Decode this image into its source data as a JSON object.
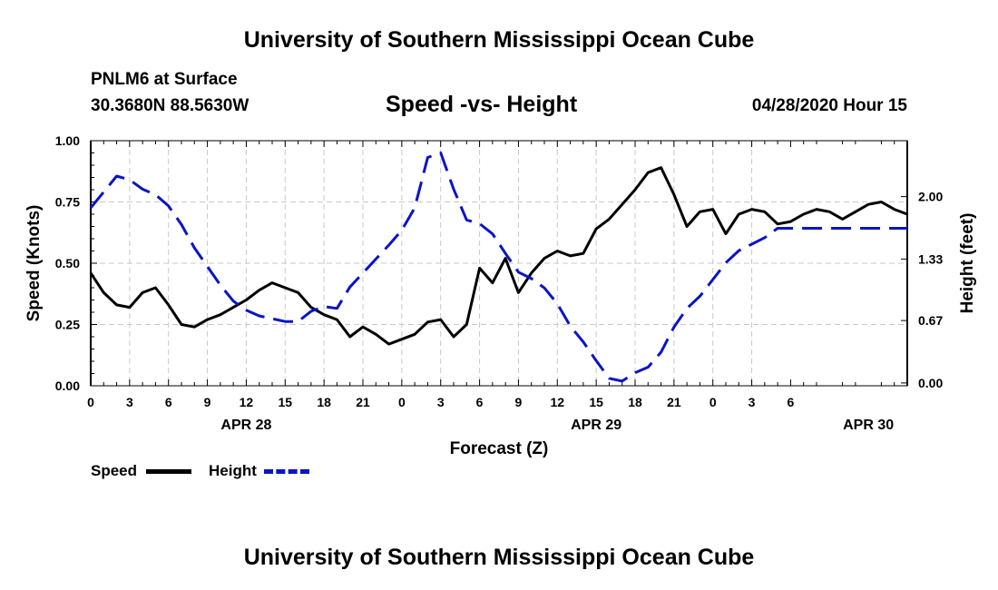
{
  "header": {
    "title": "University of Southern Mississippi Ocean Cube",
    "footer_title": "University of Southern Mississippi Ocean Cube",
    "station": "PNLM6 at Surface",
    "location": "30.3680N 88.5630W",
    "plot_title": "Speed -vs- Height",
    "timestamp": "04/28/2020 Hour 15"
  },
  "legend": {
    "speed_label": "Speed",
    "height_label": "Height"
  },
  "colors": {
    "speed": "#000000",
    "height": "#0a14c8",
    "grid": "#c8c8c8"
  },
  "chart_data": {
    "type": "line",
    "title": "Speed -vs- Height",
    "xlabel": "Forecast (Z)",
    "ylabel_left": "Speed (Knots)",
    "ylabel_right": "Height (feet)",
    "xlim": [
      0,
      63
    ],
    "ylim_left": [
      0,
      1.0
    ],
    "ylim_right": [
      -0.03,
      2.6
    ],
    "x_tick_labels": [
      "0",
      "3",
      "6",
      "9",
      "12",
      "15",
      "18",
      "21",
      "0",
      "3",
      "6",
      "9",
      "12",
      "15",
      "18",
      "21",
      "0",
      "3",
      "6"
    ],
    "left_ticks": [
      0.0,
      0.25,
      0.5,
      0.75,
      1.0
    ],
    "left_tick_labels": [
      "0.00",
      "0.25",
      "0.50",
      "0.75",
      "1.00"
    ],
    "right_ticks": [
      0.0,
      0.67,
      1.33,
      2.0
    ],
    "right_tick_labels": [
      "0.00",
      "0.67",
      "1.33",
      "2.00"
    ],
    "date_labels": [
      {
        "label": "APR 28",
        "hour": 12
      },
      {
        "label": "APR 29",
        "hour": 39
      },
      {
        "label": "APR 30",
        "hour": 60
      }
    ],
    "grid": true,
    "series": [
      {
        "name": "Speed",
        "axis": "left",
        "style": "solid",
        "x": [
          0,
          1,
          2,
          3,
          4,
          5,
          6,
          7,
          8,
          9,
          10,
          11,
          12,
          13,
          14,
          15,
          16,
          17,
          18,
          19,
          20,
          21,
          22,
          23,
          24,
          25,
          26,
          27,
          28,
          29,
          30,
          31,
          32,
          33,
          34,
          35,
          36,
          37,
          38,
          39,
          40,
          41,
          42,
          43,
          44,
          45,
          46,
          47,
          48,
          49,
          50,
          51,
          52,
          53,
          54,
          55,
          56,
          57,
          58,
          59,
          60,
          61,
          62,
          63
        ],
        "values": [
          0.46,
          0.38,
          0.33,
          0.32,
          0.38,
          0.4,
          0.33,
          0.25,
          0.24,
          0.27,
          0.29,
          0.32,
          0.35,
          0.39,
          0.42,
          0.4,
          0.38,
          0.32,
          0.29,
          0.27,
          0.2,
          0.24,
          0.21,
          0.17,
          0.19,
          0.21,
          0.26,
          0.27,
          0.2,
          0.25,
          0.48,
          0.42,
          0.52,
          0.38,
          0.46,
          0.52,
          0.55,
          0.53,
          0.54,
          0.64,
          0.68,
          0.74,
          0.8,
          0.87,
          0.89,
          0.78,
          0.65,
          0.71,
          0.72,
          0.62,
          0.7,
          0.72,
          0.71,
          0.66,
          0.67,
          0.7,
          0.72,
          0.71,
          0.68,
          0.71,
          0.74,
          0.75,
          0.72,
          0.7
        ]
      },
      {
        "name": "Height",
        "axis": "right",
        "style": "dashed",
        "x": [
          0,
          1,
          2,
          3,
          4,
          5,
          6,
          7,
          8,
          9,
          10,
          11,
          12,
          13,
          14,
          15,
          16,
          17,
          18,
          19,
          20,
          21,
          22,
          23,
          24,
          25,
          26,
          27,
          28,
          29,
          30,
          31,
          32,
          33,
          34,
          35,
          36,
          37,
          38,
          39,
          40,
          41,
          42,
          43,
          44,
          45,
          46,
          47,
          48,
          49,
          50,
          51,
          52,
          53,
          54,
          55,
          56,
          57,
          58,
          59,
          60,
          61,
          62,
          63
        ],
        "values": [
          1.88,
          2.05,
          2.22,
          2.18,
          2.08,
          2.02,
          1.9,
          1.7,
          1.45,
          1.25,
          1.05,
          0.88,
          0.78,
          0.72,
          0.69,
          0.66,
          0.66,
          0.77,
          0.82,
          0.8,
          1.03,
          1.18,
          1.33,
          1.48,
          1.64,
          1.88,
          2.42,
          2.47,
          2.08,
          1.75,
          1.71,
          1.6,
          1.39,
          1.19,
          1.12,
          1.02,
          0.85,
          0.61,
          0.44,
          0.24,
          0.05,
          0.02,
          0.11,
          0.17,
          0.33,
          0.6,
          0.8,
          0.93,
          1.11,
          1.29,
          1.42,
          1.49,
          1.56,
          1.66,
          1.66,
          1.66,
          1.66,
          1.66,
          1.66,
          1.66,
          1.66,
          1.66,
          1.66,
          1.66
        ]
      }
    ]
  }
}
